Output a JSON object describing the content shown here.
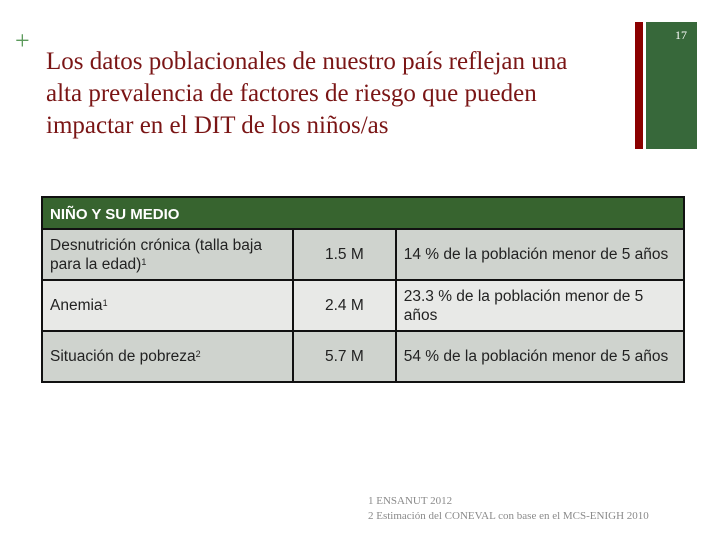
{
  "slide": {
    "bullet_symbol": "+",
    "title": "Los datos poblacionales de nuestro país reflejan una alta prevalencia de factores de riesgo que pueden impactar en el DIT de los niños/as",
    "page_number": "17",
    "colors": {
      "title": "#7a1515",
      "accent_red": "#8b0000",
      "accent_green": "#37683a",
      "table_header": "#37642f"
    }
  },
  "table": {
    "header": "NIÑO Y SU MEDIO",
    "rows": [
      {
        "indicator": "Desnutrición crónica (talla baja para la edad)",
        "footnote": "1",
        "value": "1.5 M",
        "description": "14 % de la población menor de 5 años"
      },
      {
        "indicator": "Anemia",
        "footnote": "1",
        "value": "2.4 M",
        "description": "23.3 % de la población menor de 5 años"
      },
      {
        "indicator": "Situación de pobreza",
        "footnote": "2",
        "value": "5.7 M",
        "description": "54 % de la población menor de 5 años"
      }
    ]
  },
  "footnotes": [
    "1 ENSANUT 2012",
    "2 Estimación del CONEVAL con base en el MCS-ENIGH 2010"
  ]
}
